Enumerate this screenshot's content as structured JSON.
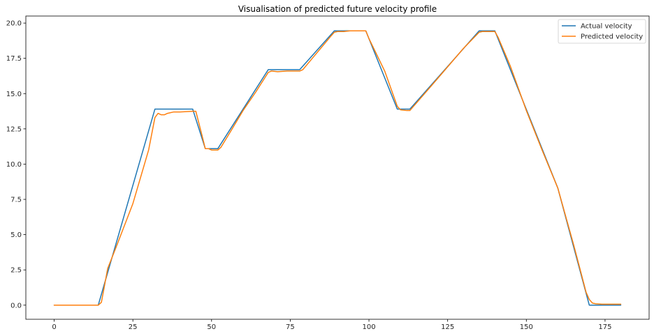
{
  "chart_data": {
    "type": "line",
    "title": "Visualisation of predicted future velocity profile",
    "xlabel": "",
    "ylabel": "",
    "xlim": [
      -9,
      189
    ],
    "ylim": [
      -1,
      20.5
    ],
    "xticks": [
      0,
      25,
      50,
      75,
      100,
      125,
      150,
      175
    ],
    "yticks": [
      0.0,
      2.5,
      5.0,
      7.5,
      10.0,
      12.5,
      15.0,
      17.5,
      20.0
    ],
    "ytick_labels": [
      "0.0",
      "2.5",
      "5.0",
      "7.5",
      "10.0",
      "12.5",
      "15.0",
      "17.5",
      "20.0"
    ],
    "grid": false,
    "legend": "top-right",
    "series": [
      {
        "name": "Actual velocity",
        "color": "#1f77b4",
        "x": [
          0,
          14,
          32,
          44,
          48,
          52,
          68,
          78,
          89,
          99,
          109,
          113,
          135,
          140,
          160,
          170,
          180
        ],
        "y": [
          0,
          0,
          13.9,
          13.9,
          11.1,
          11.1,
          16.7,
          16.7,
          19.45,
          19.45,
          13.9,
          13.9,
          19.45,
          19.45,
          8.3,
          0,
          0
        ]
      },
      {
        "name": "Predicted velocity",
        "color": "#ff7f0e",
        "x": [
          0,
          14,
          15,
          17,
          20,
          25,
          30,
          32,
          33,
          34,
          35,
          36,
          38,
          40,
          44,
          45,
          47,
          48,
          49,
          50,
          52,
          53,
          56,
          60,
          64,
          68,
          69,
          71,
          74,
          76,
          78,
          79,
          82,
          85,
          88,
          89,
          90,
          92,
          94,
          96,
          98,
          99,
          100,
          105,
          109,
          110,
          112,
          113,
          120,
          125,
          130,
          135,
          136,
          138,
          140,
          141,
          145,
          150,
          155,
          160,
          165,
          169,
          170,
          171,
          172,
          174,
          176,
          180
        ],
        "y": [
          0,
          0,
          0.2,
          2.6,
          4.3,
          7.2,
          11.0,
          13.3,
          13.6,
          13.5,
          13.5,
          13.6,
          13.7,
          13.7,
          13.75,
          13.75,
          12.0,
          11.1,
          11.1,
          11.0,
          11.0,
          11.2,
          12.3,
          13.8,
          15.1,
          16.5,
          16.6,
          16.55,
          16.6,
          16.6,
          16.6,
          16.7,
          17.5,
          18.3,
          19.1,
          19.35,
          19.4,
          19.4,
          19.45,
          19.45,
          19.45,
          19.45,
          18.9,
          16.6,
          14.1,
          13.85,
          13.8,
          13.8,
          15.6,
          16.9,
          18.2,
          19.35,
          19.4,
          19.4,
          19.4,
          19.0,
          16.9,
          13.8,
          11.0,
          8.3,
          4.3,
          0.9,
          0.4,
          0.15,
          0.1,
          0.07,
          0.07,
          0.07
        ]
      }
    ]
  }
}
